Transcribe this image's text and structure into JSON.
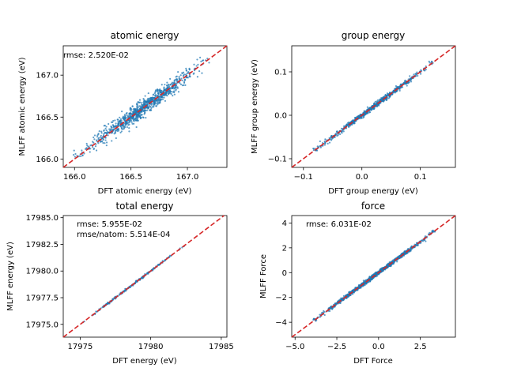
{
  "chart_data": [
    {
      "type": "scatter",
      "title": "atomic energy",
      "xlabel": "DFT atomic energy (eV)",
      "ylabel": "MLFF atomic energy (eV)",
      "xlim": [
        165.9,
        167.35
      ],
      "ylim": [
        165.9,
        167.35
      ],
      "xticks": [
        166.0,
        166.5,
        167.0
      ],
      "yticks": [
        166.0,
        166.5,
        167.0
      ],
      "ticklabels": [
        "166.0",
        "166.5",
        "167.0"
      ],
      "annotations": [
        "rmse: 2.520E-02"
      ],
      "cloud": {
        "x_range": [
          166.05,
          167.15
        ],
        "spread": 0.05,
        "count": 900
      },
      "series": [
        {
          "x": [
            166.1,
            166.3,
            166.5,
            166.7,
            166.9,
            167.1
          ],
          "y": [
            166.1,
            166.3,
            166.5,
            166.7,
            166.9,
            167.1
          ]
        }
      ],
      "reference_line": "y = x",
      "grid": false
    },
    {
      "type": "scatter",
      "title": "group energy",
      "xlabel": "DFT group energy (eV)",
      "ylabel": "MLFF group energy (eV)",
      "xlim": [
        -0.12,
        0.16
      ],
      "ylim": [
        -0.12,
        0.16
      ],
      "xticks": [
        -0.1,
        0.0,
        0.1
      ],
      "yticks": [
        -0.1,
        0.0,
        0.1
      ],
      "ticklabels": [
        "−0.1",
        "0.0",
        "0.1"
      ],
      "annotations": [],
      "cloud": {
        "x_range": [
          -0.08,
          0.12
        ],
        "spread": 0.003,
        "count": 700
      },
      "series": [
        {
          "x": [
            -0.08,
            -0.04,
            0.0,
            0.04,
            0.08,
            0.12
          ],
          "y": [
            -0.08,
            -0.04,
            0.0,
            0.04,
            0.08,
            0.12
          ]
        }
      ],
      "reference_line": "y = x",
      "grid": false
    },
    {
      "type": "scatter",
      "title": "total energy",
      "xlabel": "DFT energy (eV)",
      "ylabel": "MLFF energy (eV)",
      "xlim": [
        17973.8,
        17985.4
      ],
      "ylim": [
        17973.8,
        17985.2
      ],
      "xticks": [
        17975,
        17980,
        17985
      ],
      "yticks": [
        17975.0,
        17977.5,
        17980.0,
        17982.5,
        17985.0
      ],
      "xticklabels": [
        "17975",
        "17980",
        "17985"
      ],
      "yticklabels": [
        "17975.0",
        "17977.5",
        "17980.0",
        "17982.5",
        "17985.0"
      ],
      "annotations": [
        "rmse: 5.955E-02",
        "rmse/natom: 5.514E-04"
      ],
      "cloud": {
        "x_range": [
          17975.2,
          17982.4
        ],
        "spread": 0.05,
        "count": 220
      },
      "series": [
        {
          "x": [
            17975.2,
            17977.0,
            17979.0,
            17981.0,
            17982.4
          ],
          "y": [
            17975.2,
            17977.0,
            17979.0,
            17981.0,
            17982.4
          ]
        }
      ],
      "reference_line": "y = x",
      "grid": false
    },
    {
      "type": "scatter",
      "title": "force",
      "xlabel": "DFT Force",
      "ylabel": "MLFF Force",
      "xlim": [
        -5.2,
        4.6
      ],
      "ylim": [
        -5.2,
        4.6
      ],
      "xticks": [
        -5.0,
        -2.5,
        0.0,
        2.5
      ],
      "yticks": [
        -4,
        -2,
        0,
        2,
        4
      ],
      "xticklabels": [
        "−5.0",
        "−2.5",
        "0.0",
        "2.5"
      ],
      "yticklabels": [
        "−4",
        "−2",
        "0",
        "2",
        "4"
      ],
      "annotations": [
        "rmse: 6.031E-02"
      ],
      "cloud": {
        "x_range": [
          -3.8,
          3.3
        ],
        "spread": 0.08,
        "count": 1100
      },
      "series": [
        {
          "x": [
            -3.8,
            -2.0,
            0.0,
            2.0,
            3.3
          ],
          "y": [
            -3.8,
            -2.0,
            0.0,
            2.0,
            3.3
          ]
        }
      ],
      "reference_line": "y = x",
      "grid": false
    }
  ],
  "colors": {
    "points": "#1f77b4",
    "reference": "#d62728"
  }
}
